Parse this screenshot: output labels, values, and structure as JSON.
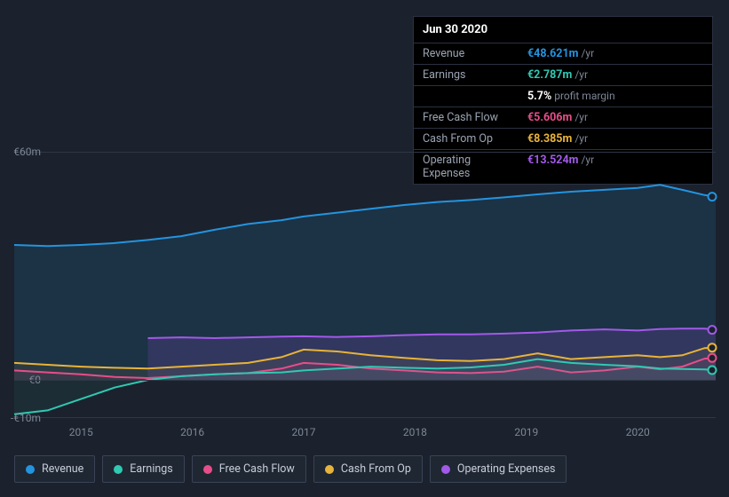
{
  "tooltip": {
    "date": "Jun 30 2020",
    "rows": [
      {
        "label": "Revenue",
        "value": "€48.621m",
        "unit": "/yr",
        "color": "#2394df"
      },
      {
        "label": "Earnings",
        "value": "€2.787m",
        "unit": "/yr",
        "color": "#30c9b2"
      },
      {
        "label": "",
        "value": "5.7%",
        "unit": "profit margin",
        "color": "#ffffff"
      },
      {
        "label": "Free Cash Flow",
        "value": "€5.606m",
        "unit": "/yr",
        "color": "#e84d8a"
      },
      {
        "label": "Cash From Op",
        "value": "€8.385m",
        "unit": "/yr",
        "color": "#e8b33a"
      },
      {
        "label": "Operating Expenses",
        "value": "€13.524m",
        "unit": "/yr",
        "color": "#a259e8"
      }
    ]
  },
  "chart": {
    "type": "area",
    "background": "#1b222d",
    "grid_color": "#2e3746",
    "label_color": "#7d8696",
    "label_fontsize": 12,
    "ylim": [
      -10,
      60
    ],
    "ytick_labels": [
      "€60m",
      "€0",
      "-€10m"
    ],
    "ytick_values": [
      60,
      0,
      -10
    ],
    "x_start": 2014.4,
    "x_end": 2020.7,
    "xticks": [
      2015,
      2016,
      2017,
      2018,
      2019,
      2020
    ],
    "series": [
      {
        "name": "revenue",
        "label": "Revenue",
        "color": "#2394df",
        "fill_opacity": 0.14,
        "line_width": 2,
        "points": [
          [
            2014.4,
            35.5
          ],
          [
            2014.7,
            35.2
          ],
          [
            2015.0,
            35.5
          ],
          [
            2015.3,
            36.0
          ],
          [
            2015.6,
            36.8
          ],
          [
            2015.9,
            37.8
          ],
          [
            2016.2,
            39.5
          ],
          [
            2016.5,
            41.0
          ],
          [
            2016.8,
            42.0
          ],
          [
            2017.0,
            43.0
          ],
          [
            2017.3,
            44.0
          ],
          [
            2017.6,
            45.0
          ],
          [
            2017.9,
            46.0
          ],
          [
            2018.2,
            46.8
          ],
          [
            2018.5,
            47.3
          ],
          [
            2018.8,
            48.0
          ],
          [
            2019.1,
            48.8
          ],
          [
            2019.4,
            49.5
          ],
          [
            2019.7,
            50.0
          ],
          [
            2020.0,
            50.5
          ],
          [
            2020.2,
            51.3
          ],
          [
            2020.4,
            50.0
          ],
          [
            2020.6,
            48.621
          ],
          [
            2020.7,
            48.2
          ]
        ]
      },
      {
        "name": "operating_expenses",
        "label": "Operating Expenses",
        "color": "#a259e8",
        "fill_opacity": 0.16,
        "line_width": 2,
        "points": [
          [
            2015.6,
            11.0
          ],
          [
            2015.9,
            11.2
          ],
          [
            2016.2,
            11.0
          ],
          [
            2016.5,
            11.2
          ],
          [
            2016.8,
            11.4
          ],
          [
            2017.0,
            11.5
          ],
          [
            2017.3,
            11.3
          ],
          [
            2017.6,
            11.5
          ],
          [
            2017.9,
            11.8
          ],
          [
            2018.2,
            12.0
          ],
          [
            2018.5,
            12.0
          ],
          [
            2018.8,
            12.2
          ],
          [
            2019.1,
            12.5
          ],
          [
            2019.4,
            13.0
          ],
          [
            2019.7,
            13.3
          ],
          [
            2020.0,
            13.0
          ],
          [
            2020.2,
            13.4
          ],
          [
            2020.4,
            13.5
          ],
          [
            2020.6,
            13.524
          ],
          [
            2020.7,
            13.2
          ]
        ]
      },
      {
        "name": "cash_from_op",
        "label": "Cash From Op",
        "color": "#e8b33a",
        "fill_opacity": 0.07,
        "line_width": 2,
        "points": [
          [
            2014.4,
            4.5
          ],
          [
            2014.7,
            4.0
          ],
          [
            2015.0,
            3.5
          ],
          [
            2015.3,
            3.2
          ],
          [
            2015.6,
            3.0
          ],
          [
            2015.9,
            3.5
          ],
          [
            2016.2,
            4.0
          ],
          [
            2016.5,
            4.5
          ],
          [
            2016.8,
            6.0
          ],
          [
            2017.0,
            8.0
          ],
          [
            2017.3,
            7.5
          ],
          [
            2017.6,
            6.5
          ],
          [
            2017.9,
            5.8
          ],
          [
            2018.2,
            5.2
          ],
          [
            2018.5,
            5.0
          ],
          [
            2018.8,
            5.5
          ],
          [
            2019.1,
            7.0
          ],
          [
            2019.4,
            5.5
          ],
          [
            2019.7,
            6.0
          ],
          [
            2020.0,
            6.5
          ],
          [
            2020.2,
            6.0
          ],
          [
            2020.4,
            6.5
          ],
          [
            2020.6,
            8.385
          ],
          [
            2020.7,
            8.5
          ]
        ]
      },
      {
        "name": "free_cash_flow",
        "label": "Free Cash Flow",
        "color": "#e84d8a",
        "fill_opacity": 0.07,
        "line_width": 2,
        "points": [
          [
            2014.4,
            2.5
          ],
          [
            2014.7,
            2.0
          ],
          [
            2015.0,
            1.5
          ],
          [
            2015.3,
            0.8
          ],
          [
            2015.6,
            0.5
          ],
          [
            2015.9,
            1.0
          ],
          [
            2016.2,
            1.5
          ],
          [
            2016.5,
            1.8
          ],
          [
            2016.8,
            3.0
          ],
          [
            2017.0,
            4.5
          ],
          [
            2017.3,
            4.0
          ],
          [
            2017.6,
            3.0
          ],
          [
            2017.9,
            2.5
          ],
          [
            2018.2,
            2.0
          ],
          [
            2018.5,
            1.8
          ],
          [
            2018.8,
            2.2
          ],
          [
            2019.1,
            3.5
          ],
          [
            2019.4,
            2.0
          ],
          [
            2019.7,
            2.5
          ],
          [
            2020.0,
            3.5
          ],
          [
            2020.2,
            2.8
          ],
          [
            2020.4,
            3.5
          ],
          [
            2020.6,
            5.606
          ],
          [
            2020.7,
            5.8
          ]
        ]
      },
      {
        "name": "earnings",
        "label": "Earnings",
        "color": "#30c9b2",
        "fill_opacity": 0.07,
        "line_width": 2,
        "points": [
          [
            2014.4,
            -9.0
          ],
          [
            2014.7,
            -8.0
          ],
          [
            2015.0,
            -5.0
          ],
          [
            2015.3,
            -2.0
          ],
          [
            2015.6,
            0.0
          ],
          [
            2015.9,
            1.0
          ],
          [
            2016.2,
            1.5
          ],
          [
            2016.5,
            1.8
          ],
          [
            2016.8,
            2.0
          ],
          [
            2017.0,
            2.5
          ],
          [
            2017.3,
            3.0
          ],
          [
            2017.6,
            3.5
          ],
          [
            2017.9,
            3.2
          ],
          [
            2018.2,
            3.0
          ],
          [
            2018.5,
            3.3
          ],
          [
            2018.8,
            4.0
          ],
          [
            2019.1,
            5.5
          ],
          [
            2019.4,
            4.5
          ],
          [
            2019.7,
            4.0
          ],
          [
            2020.0,
            3.6
          ],
          [
            2020.2,
            3.0
          ],
          [
            2020.4,
            2.9
          ],
          [
            2020.6,
            2.787
          ],
          [
            2020.7,
            2.6
          ]
        ]
      }
    ],
    "end_markers": [
      {
        "color": "#2394df",
        "value": 48.2
      },
      {
        "color": "#a259e8",
        "value": 13.2
      },
      {
        "color": "#e84d8a",
        "value": 5.8
      },
      {
        "color": "#e8b33a",
        "value": 8.5
      },
      {
        "color": "#30c9b2",
        "value": 2.6
      }
    ],
    "legend": [
      {
        "label": "Revenue",
        "color": "#2394df"
      },
      {
        "label": "Earnings",
        "color": "#30c9b2"
      },
      {
        "label": "Free Cash Flow",
        "color": "#e84d8a"
      },
      {
        "label": "Cash From Op",
        "color": "#e8b33a"
      },
      {
        "label": "Operating Expenses",
        "color": "#a259e8"
      }
    ]
  }
}
